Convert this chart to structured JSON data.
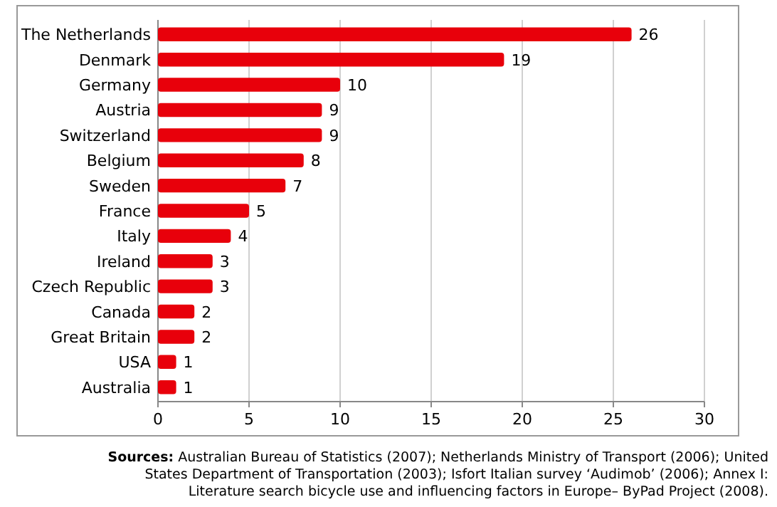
{
  "chart_data": {
    "type": "bar",
    "orientation": "horizontal",
    "categories": [
      "The Netherlands",
      "Denmark",
      "Germany",
      "Austria",
      "Switzerland",
      "Belgium",
      "Sweden",
      "France",
      "Italy",
      "Ireland",
      "Czech Republic",
      "Canada",
      "Great Britain",
      "USA",
      "Australia"
    ],
    "values": [
      26,
      19,
      10,
      9,
      9,
      8,
      7,
      5,
      4,
      3,
      3,
      2,
      2,
      1,
      1
    ],
    "color": "#e8000b",
    "xlim": [
      0,
      30
    ],
    "xticks": [
      0,
      5,
      10,
      15,
      20,
      25,
      30
    ],
    "grid": "x",
    "data_labels": true,
    "annotations": [
      "Sources: Australian Bureau of Statistics (2007); Netherlands Ministry of Transport (2006); United States Department of Transportation (2003); Isfort Italian survey ‘Audimob’ (2006); Annex I: Literature search bicycle use and influencing factors in Europe– ByPad Project (2008)."
    ]
  }
}
